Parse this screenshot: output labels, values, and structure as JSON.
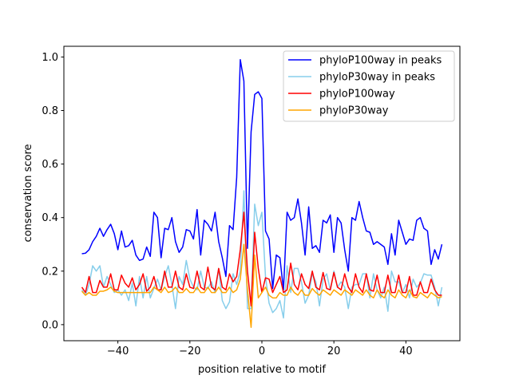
{
  "chart_data": {
    "type": "line",
    "title": "",
    "xlabel": "position relative to motif",
    "ylabel": "conservation score",
    "xlim": [
      -55,
      55
    ],
    "ylim": [
      -0.06,
      1.04
    ],
    "xticks": [
      -40,
      -20,
      0,
      20,
      40
    ],
    "xtick_labels": [
      "−40",
      "−20",
      "0",
      "20",
      "40"
    ],
    "yticks": [
      0.0,
      0.2,
      0.4,
      0.6,
      0.8,
      1.0
    ],
    "ytick_labels": [
      "0.0",
      "0.2",
      "0.4",
      "0.6",
      "0.8",
      "1.0"
    ],
    "grid": false,
    "legend_position": "top-right",
    "x": [
      -50,
      -49,
      -48,
      -47,
      -46,
      -45,
      -44,
      -43,
      -42,
      -41,
      -40,
      -39,
      -38,
      -37,
      -36,
      -35,
      -34,
      -33,
      -32,
      -31,
      -30,
      -29,
      -28,
      -27,
      -26,
      -25,
      -24,
      -23,
      -22,
      -21,
      -20,
      -19,
      -18,
      -17,
      -16,
      -15,
      -14,
      -13,
      -12,
      -11,
      -10,
      -9,
      -8,
      -7,
      -6,
      -5,
      -4,
      -3,
      -2,
      -1,
      0,
      1,
      2,
      3,
      4,
      5,
      6,
      7,
      8,
      9,
      10,
      11,
      12,
      13,
      14,
      15,
      16,
      17,
      18,
      19,
      20,
      21,
      22,
      23,
      24,
      25,
      26,
      27,
      28,
      29,
      30,
      31,
      32,
      33,
      34,
      35,
      36,
      37,
      38,
      39,
      40,
      41,
      42,
      43,
      44,
      45,
      46,
      47,
      48,
      49,
      50
    ],
    "series": [
      {
        "name": "phyloP100way in peaks",
        "color": "#0000ff",
        "values": [
          0.265,
          0.267,
          0.28,
          0.31,
          0.33,
          0.36,
          0.33,
          0.355,
          0.375,
          0.34,
          0.28,
          0.35,
          0.29,
          0.295,
          0.315,
          0.26,
          0.24,
          0.245,
          0.29,
          0.255,
          0.42,
          0.4,
          0.25,
          0.36,
          0.355,
          0.4,
          0.31,
          0.27,
          0.29,
          0.355,
          0.35,
          0.32,
          0.43,
          0.26,
          0.39,
          0.375,
          0.35,
          0.42,
          0.31,
          0.25,
          0.18,
          0.37,
          0.355,
          0.55,
          0.99,
          0.91,
          0.285,
          0.72,
          0.86,
          0.87,
          0.845,
          0.35,
          0.32,
          0.135,
          0.26,
          0.25,
          0.13,
          0.42,
          0.39,
          0.4,
          0.47,
          0.38,
          0.26,
          0.44,
          0.285,
          0.295,
          0.27,
          0.39,
          0.38,
          0.41,
          0.27,
          0.4,
          0.38,
          0.28,
          0.2,
          0.4,
          0.39,
          0.46,
          0.4,
          0.35,
          0.345,
          0.3,
          0.31,
          0.3,
          0.29,
          0.225,
          0.34,
          0.26,
          0.39,
          0.345,
          0.3,
          0.32,
          0.315,
          0.39,
          0.4,
          0.36,
          0.35,
          0.225,
          0.28,
          0.245,
          0.3
        ]
      },
      {
        "name": "phyloP30way in peaks",
        "color": "#87ceeb",
        "values": [
          0.13,
          0.11,
          0.15,
          0.22,
          0.2,
          0.22,
          0.14,
          0.18,
          0.15,
          0.12,
          0.13,
          0.11,
          0.13,
          0.09,
          0.155,
          0.07,
          0.18,
          0.1,
          0.18,
          0.1,
          0.135,
          0.17,
          0.13,
          0.18,
          0.22,
          0.15,
          0.06,
          0.18,
          0.15,
          0.24,
          0.17,
          0.14,
          0.13,
          0.2,
          0.14,
          0.135,
          0.16,
          0.12,
          0.21,
          0.09,
          0.06,
          0.085,
          0.19,
          0.15,
          0.2,
          0.5,
          0.06,
          0.06,
          0.45,
          0.37,
          0.42,
          0.18,
          0.08,
          0.045,
          0.06,
          0.09,
          0.025,
          0.22,
          0.12,
          0.21,
          0.21,
          0.16,
          0.08,
          0.11,
          0.19,
          0.16,
          0.07,
          0.17,
          0.19,
          0.13,
          0.2,
          0.14,
          0.16,
          0.14,
          0.06,
          0.14,
          0.15,
          0.15,
          0.19,
          0.19,
          0.1,
          0.19,
          0.13,
          0.1,
          0.14,
          0.05,
          0.2,
          0.16,
          0.16,
          0.12,
          0.15,
          0.1,
          0.17,
          0.14,
          0.155,
          0.19,
          0.185,
          0.185,
          0.14,
          0.07,
          0.14
        ]
      },
      {
        "name": "phyloP100way",
        "color": "#ff0000",
        "values": [
          0.14,
          0.12,
          0.18,
          0.12,
          0.12,
          0.165,
          0.14,
          0.14,
          0.19,
          0.13,
          0.13,
          0.185,
          0.155,
          0.14,
          0.175,
          0.13,
          0.15,
          0.19,
          0.125,
          0.14,
          0.18,
          0.13,
          0.13,
          0.2,
          0.14,
          0.14,
          0.2,
          0.14,
          0.13,
          0.19,
          0.14,
          0.135,
          0.2,
          0.14,
          0.13,
          0.215,
          0.14,
          0.13,
          0.21,
          0.14,
          0.13,
          0.19,
          0.16,
          0.18,
          0.28,
          0.42,
          0.2,
          0.07,
          0.345,
          0.21,
          0.12,
          0.175,
          0.17,
          0.12,
          0.15,
          0.18,
          0.12,
          0.13,
          0.23,
          0.15,
          0.13,
          0.19,
          0.15,
          0.135,
          0.2,
          0.14,
          0.13,
          0.195,
          0.135,
          0.13,
          0.195,
          0.14,
          0.13,
          0.19,
          0.14,
          0.12,
          0.19,
          0.14,
          0.12,
          0.19,
          0.13,
          0.125,
          0.185,
          0.12,
          0.12,
          0.185,
          0.12,
          0.12,
          0.185,
          0.12,
          0.12,
          0.18,
          0.11,
          0.11,
          0.16,
          0.12,
          0.12,
          0.17,
          0.13,
          0.11,
          0.11
        ]
      },
      {
        "name": "phyloP30way",
        "color": "#ffa500",
        "values": [
          0.125,
          0.11,
          0.12,
          0.11,
          0.11,
          0.125,
          0.125,
          0.13,
          0.14,
          0.125,
          0.12,
          0.12,
          0.12,
          0.12,
          0.12,
          0.12,
          0.12,
          0.12,
          0.12,
          0.12,
          0.14,
          0.13,
          0.12,
          0.14,
          0.12,
          0.125,
          0.14,
          0.12,
          0.12,
          0.135,
          0.12,
          0.12,
          0.14,
          0.12,
          0.12,
          0.14,
          0.12,
          0.12,
          0.14,
          0.12,
          0.12,
          0.14,
          0.12,
          0.13,
          0.17,
          0.3,
          0.13,
          -0.01,
          0.26,
          0.1,
          0.12,
          0.14,
          0.11,
          0.1,
          0.1,
          0.12,
          0.11,
          0.11,
          0.14,
          0.12,
          0.11,
          0.13,
          0.11,
          0.11,
          0.135,
          0.12,
          0.11,
          0.13,
          0.12,
          0.11,
          0.13,
          0.12,
          0.11,
          0.13,
          0.12,
          0.11,
          0.13,
          0.12,
          0.11,
          0.13,
          0.11,
          0.1,
          0.13,
          0.11,
          0.1,
          0.13,
          0.11,
          0.1,
          0.13,
          0.11,
          0.1,
          0.13,
          0.105,
          0.1,
          0.12,
          0.11,
          0.1,
          0.12,
          0.11,
          0.1,
          0.105
        ]
      }
    ]
  }
}
